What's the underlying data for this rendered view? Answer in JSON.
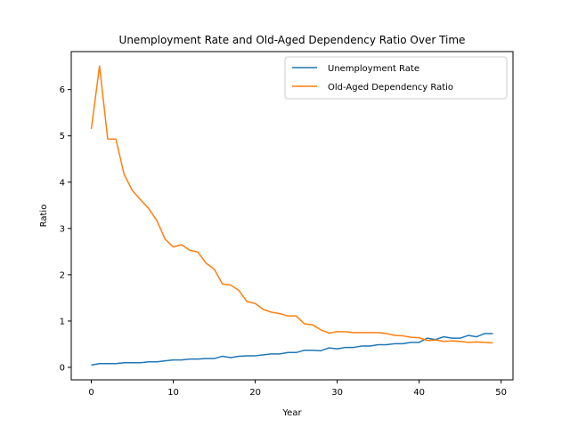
{
  "chart_data": {
    "type": "line",
    "title": "Unemployment Rate and Old-Aged Dependency Ratio Over Time",
    "xlabel": "Year",
    "ylabel": "Ratio",
    "xlim": [
      -2.45,
      51.45
    ],
    "ylim": [
      -0.27,
      6.82
    ],
    "xticks": [
      0,
      10,
      20,
      30,
      40,
      50
    ],
    "yticks": [
      0,
      1,
      2,
      3,
      4,
      5,
      6
    ],
    "grid": false,
    "legend_position": "top-right",
    "x": [
      0,
      1,
      2,
      3,
      4,
      5,
      6,
      7,
      8,
      9,
      10,
      11,
      12,
      13,
      14,
      15,
      16,
      17,
      18,
      19,
      20,
      21,
      22,
      23,
      24,
      25,
      26,
      27,
      28,
      29,
      30,
      31,
      32,
      33,
      34,
      35,
      36,
      37,
      38,
      39,
      40,
      41,
      42,
      43,
      44,
      45,
      46,
      47,
      48,
      49
    ],
    "series": [
      {
        "name": "Unemployment Rate",
        "color": "#1f77b4",
        "values": [
          0.05,
          0.08,
          0.08,
          0.08,
          0.1,
          0.1,
          0.1,
          0.12,
          0.12,
          0.14,
          0.16,
          0.16,
          0.18,
          0.18,
          0.19,
          0.19,
          0.24,
          0.21,
          0.24,
          0.25,
          0.25,
          0.27,
          0.29,
          0.29,
          0.32,
          0.32,
          0.37,
          0.37,
          0.36,
          0.42,
          0.4,
          0.43,
          0.43,
          0.46,
          0.46,
          0.49,
          0.49,
          0.51,
          0.51,
          0.54,
          0.54,
          0.63,
          0.6,
          0.66,
          0.63,
          0.63,
          0.69,
          0.66,
          0.73,
          0.73
        ]
      },
      {
        "name": "Old-Aged Dependency Ratio",
        "color": "#ff7f0e",
        "values": [
          5.15,
          6.51,
          4.93,
          4.93,
          4.17,
          3.82,
          3.62,
          3.43,
          3.17,
          2.77,
          2.6,
          2.65,
          2.53,
          2.49,
          2.25,
          2.12,
          1.8,
          1.78,
          1.66,
          1.42,
          1.38,
          1.25,
          1.19,
          1.16,
          1.11,
          1.11,
          0.94,
          0.92,
          0.81,
          0.74,
          0.77,
          0.77,
          0.75,
          0.75,
          0.75,
          0.75,
          0.73,
          0.69,
          0.68,
          0.65,
          0.64,
          0.58,
          0.59,
          0.56,
          0.57,
          0.56,
          0.54,
          0.55,
          0.54,
          0.53
        ]
      }
    ]
  }
}
